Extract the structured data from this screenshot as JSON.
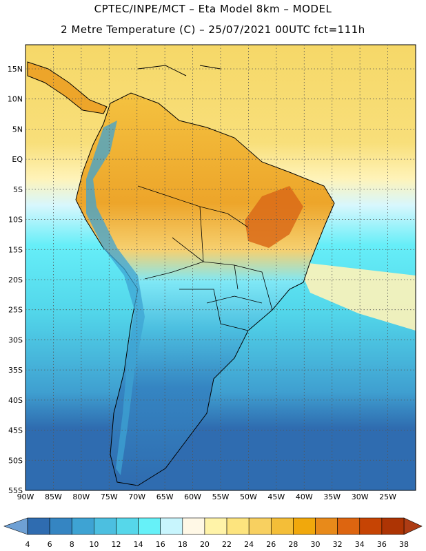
{
  "header": {
    "line1": "CPTEC/INPE/MCT –  Eta Model 8km – MODEL",
    "line2": "2 Metre Temperature (C) – 25/07/2021 00UTC fct=111h"
  },
  "map": {
    "lat_labels": [
      "15N",
      "10N",
      "5N",
      "EQ",
      "5S",
      "10S",
      "15S",
      "20S",
      "25S",
      "30S",
      "35S",
      "40S",
      "45S",
      "50S",
      "55S"
    ],
    "lon_labels": [
      "90W",
      "85W",
      "80W",
      "75W",
      "70W",
      "65W",
      "60W",
      "55W",
      "50W",
      "45W",
      "40W",
      "35W",
      "30W",
      "25W"
    ],
    "lat_range": [
      -55,
      19
    ],
    "lon_range": [
      -90,
      -20
    ],
    "graticule": "dotted",
    "ocean_north_color": "#f6d868",
    "ocean_south_color": "#2f6cb0",
    "land_hot_color": "#d96a18"
  },
  "colorbar": {
    "values": [
      "4",
      "6",
      "8",
      "10",
      "12",
      "14",
      "16",
      "18",
      "20",
      "22",
      "24",
      "26",
      "28",
      "30",
      "32",
      "34",
      "36",
      "38"
    ],
    "colors": [
      "#2f6cb0",
      "#3585c2",
      "#3ea3d3",
      "#4cbfe0",
      "#56d7ea",
      "#66f1f8",
      "#c8f5fd",
      "#fff8e6",
      "#fff3a8",
      "#fde47e",
      "#f8d060",
      "#f4be38",
      "#f1a80c",
      "#e88a1a",
      "#dd6510",
      "#c64404",
      "#ad3404",
      "#6ea0d4"
    ],
    "under_color": "#6ea0d4",
    "over_color": "#ad3c14"
  }
}
